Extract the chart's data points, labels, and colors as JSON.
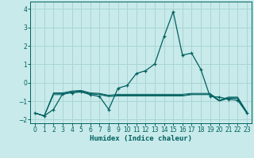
{
  "xlabel": "Humidex (Indice chaleur)",
  "background_color": "#c8eaea",
  "grid_color": "#aad4d4",
  "line_color": "#006060",
  "xlim": [
    -0.5,
    23.5
  ],
  "ylim": [
    -2.2,
    4.4
  ],
  "yticks": [
    -2,
    -1,
    0,
    1,
    2,
    3,
    4
  ],
  "xticks": [
    0,
    1,
    2,
    3,
    4,
    5,
    6,
    7,
    8,
    9,
    10,
    11,
    12,
    13,
    14,
    15,
    16,
    17,
    18,
    19,
    20,
    21,
    22,
    23
  ],
  "line1_x": [
    0,
    1,
    2,
    3,
    4,
    5,
    6,
    7,
    8,
    9,
    10,
    11,
    12,
    13,
    14,
    15,
    16,
    17,
    18,
    19,
    20,
    21,
    22,
    23
  ],
  "line1_y": [
    -1.65,
    -1.8,
    -1.45,
    -0.6,
    -0.55,
    -0.5,
    -0.65,
    -0.75,
    -1.45,
    -0.3,
    -0.15,
    0.5,
    0.65,
    1.02,
    2.5,
    3.85,
    1.5,
    1.6,
    0.72,
    -0.75,
    -0.78,
    -0.9,
    -0.95,
    -1.65
  ],
  "line2_x": [
    0,
    1,
    2,
    3,
    4,
    5,
    6,
    7,
    8,
    9,
    10,
    11,
    12,
    13,
    14,
    15,
    16,
    17,
    18,
    19,
    20,
    21,
    22,
    23
  ],
  "line2_y": [
    -1.65,
    -1.8,
    -0.65,
    -0.65,
    -0.5,
    -0.45,
    -0.6,
    -0.65,
    -0.75,
    -0.72,
    -0.72,
    -0.72,
    -0.72,
    -0.72,
    -0.72,
    -0.72,
    -0.72,
    -0.65,
    -0.65,
    -0.65,
    -1.0,
    -0.85,
    -0.85,
    -1.65
  ],
  "line3_x": [
    0,
    1,
    2,
    3,
    4,
    5,
    6,
    7,
    8,
    9,
    10,
    11,
    12,
    13,
    14,
    15,
    16,
    17,
    18,
    19,
    20,
    21,
    22,
    23
  ],
  "line3_y": [
    -1.65,
    -1.8,
    -0.6,
    -0.6,
    -0.5,
    -0.45,
    -0.6,
    -0.62,
    -0.72,
    -0.68,
    -0.68,
    -0.68,
    -0.68,
    -0.68,
    -0.68,
    -0.68,
    -0.68,
    -0.62,
    -0.62,
    -0.62,
    -0.98,
    -0.82,
    -0.82,
    -1.62
  ],
  "line4_x": [
    0,
    1,
    2,
    3,
    4,
    5,
    6,
    7,
    8,
    9,
    10,
    11,
    12,
    13,
    14,
    15,
    16,
    17,
    18,
    19,
    20,
    21,
    22,
    23
  ],
  "line4_y": [
    -1.65,
    -1.8,
    -0.55,
    -0.55,
    -0.45,
    -0.42,
    -0.55,
    -0.58,
    -0.68,
    -0.63,
    -0.63,
    -0.63,
    -0.63,
    -0.63,
    -0.63,
    -0.63,
    -0.63,
    -0.58,
    -0.58,
    -0.58,
    -0.95,
    -0.78,
    -0.78,
    -1.58
  ]
}
